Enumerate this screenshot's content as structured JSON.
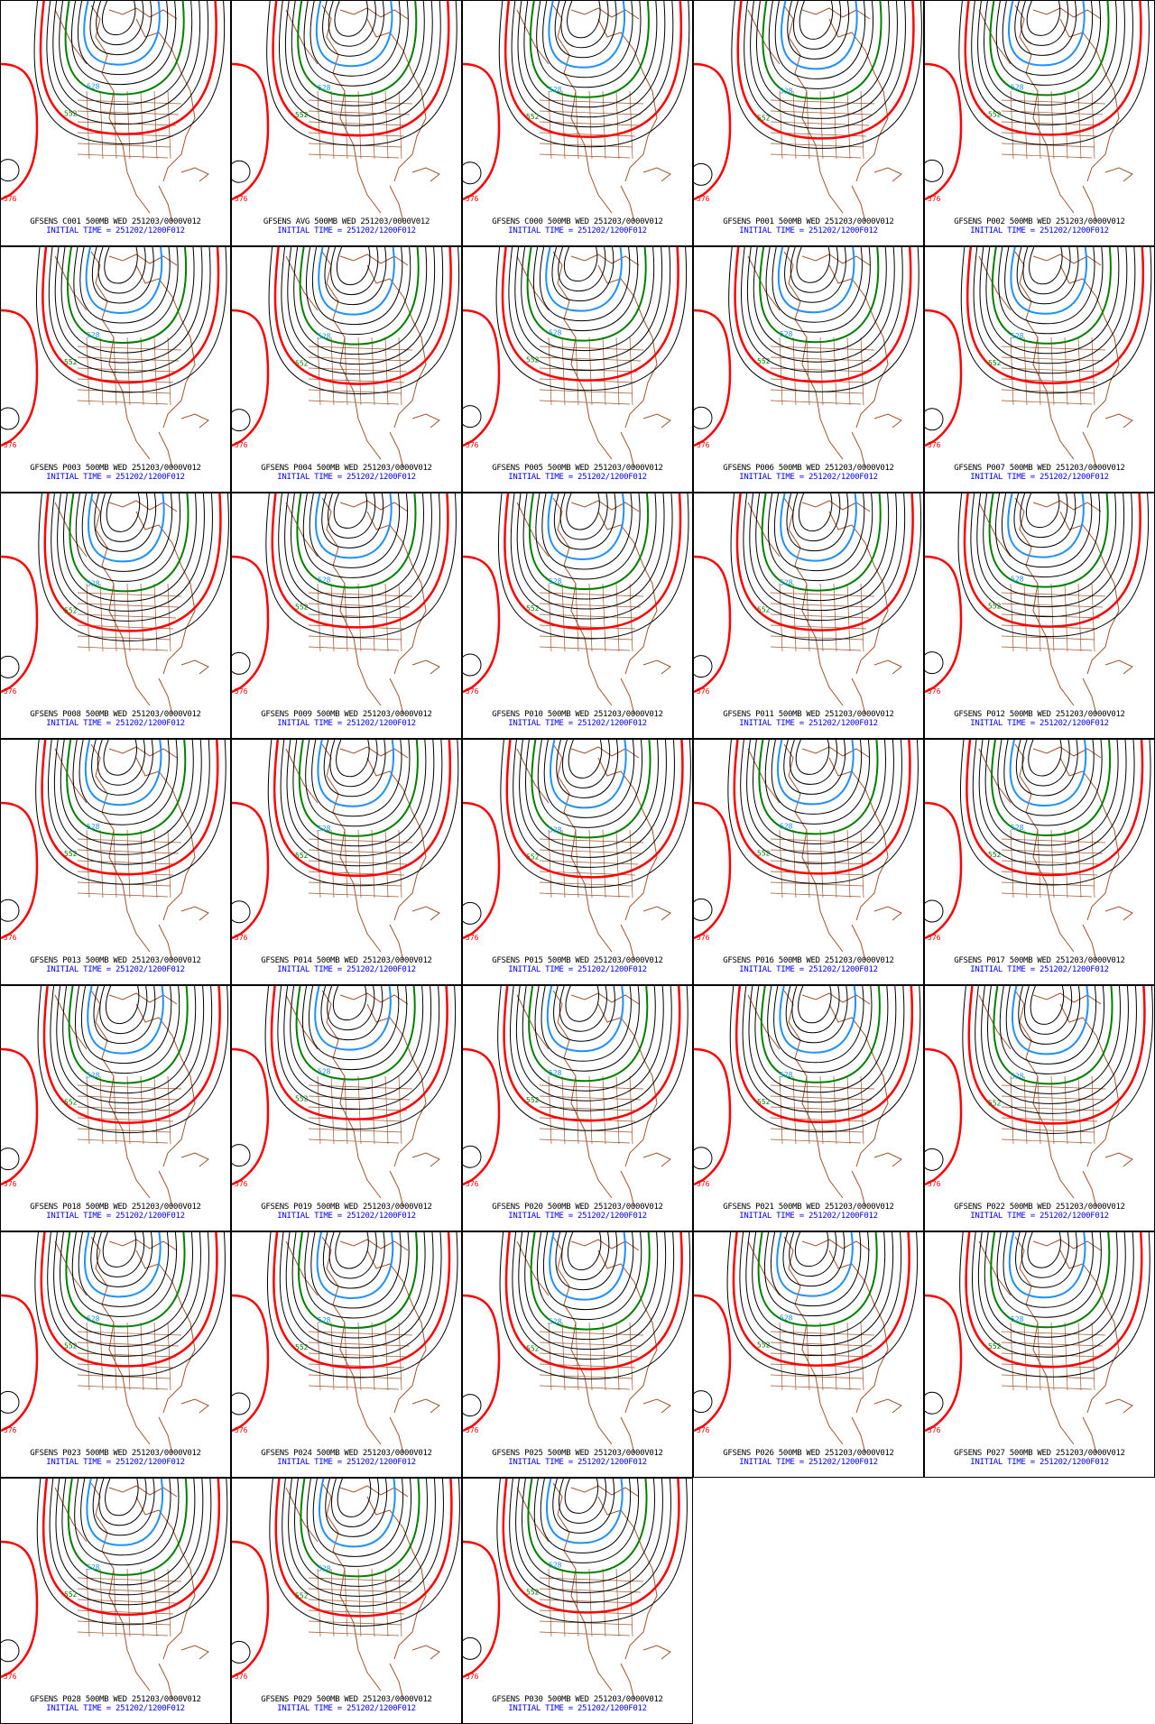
{
  "panel_line1_template": "GFSENS {member} 500MB WED 251203/0000V012",
  "panel_line2": "INITIAL TIME = 251202/1200F012",
  "members": [
    "C001",
    "AVG",
    "C000",
    "P001",
    "P002",
    "P003",
    "P004",
    "P005",
    "P006",
    "P007",
    "P008",
    "P009",
    "P010",
    "P011",
    "P012",
    "P013",
    "P014",
    "P015",
    "P016",
    "P017",
    "P018",
    "P019",
    "P020",
    "P021",
    "P022",
    "P023",
    "P024",
    "P025",
    "P026",
    "P027",
    "P028",
    "P029",
    "P030"
  ],
  "contour_labels": {
    "blue": "528",
    "green": "552",
    "red": "576"
  },
  "colors": {
    "blue": "#1e90ff",
    "green": "#008000",
    "red": "#ff0000",
    "black": "#000000",
    "coast": "#a0522d",
    "caption_blue": "#0000ff"
  }
}
